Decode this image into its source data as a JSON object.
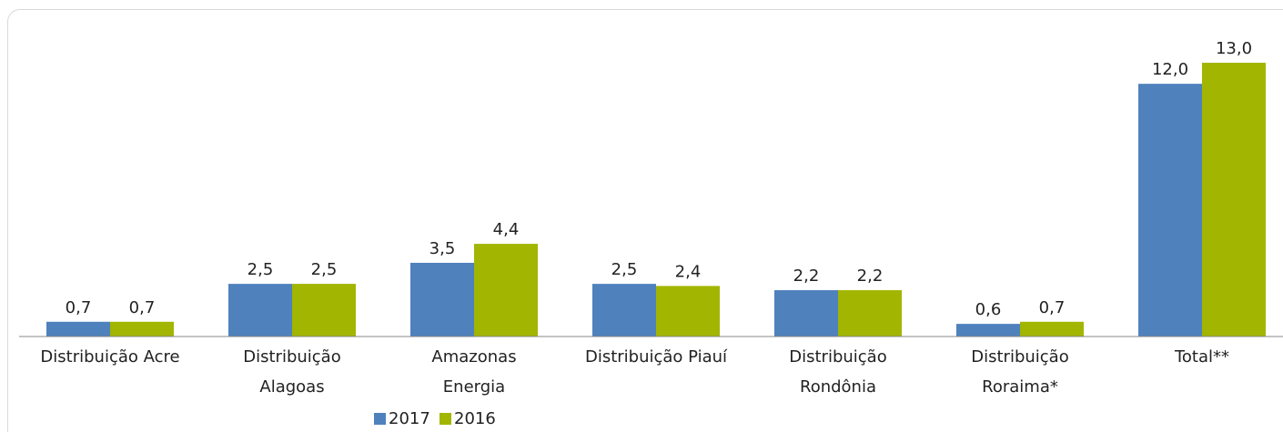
{
  "chart_data": {
    "type": "bar",
    "categories": [
      "Distribuição Acre",
      "Distribuição\nAlagoas",
      "Amazonas\nEnergia",
      "Distribuição Piauí",
      "Distribuição\nRondônia",
      "Distribuição\nRoraima*",
      "Total**"
    ],
    "series": [
      {
        "name": "2017",
        "color": "#4f81bd",
        "values": [
          0.7,
          2.5,
          3.5,
          2.5,
          2.2,
          0.6,
          12.0
        ],
        "value_labels": [
          "0,7",
          "2,5",
          "3,5",
          "2,5",
          "2,2",
          "0,6",
          "12,0"
        ]
      },
      {
        "name": "2016",
        "color": "#a2b500",
        "values": [
          0.7,
          2.5,
          4.4,
          2.4,
          2.2,
          0.7,
          13.0
        ],
        "value_labels": [
          "0,7",
          "2,5",
          "4,4",
          "2,4",
          "2,2",
          "0,7",
          "13,0"
        ]
      }
    ],
    "legend": "bottom"
  }
}
